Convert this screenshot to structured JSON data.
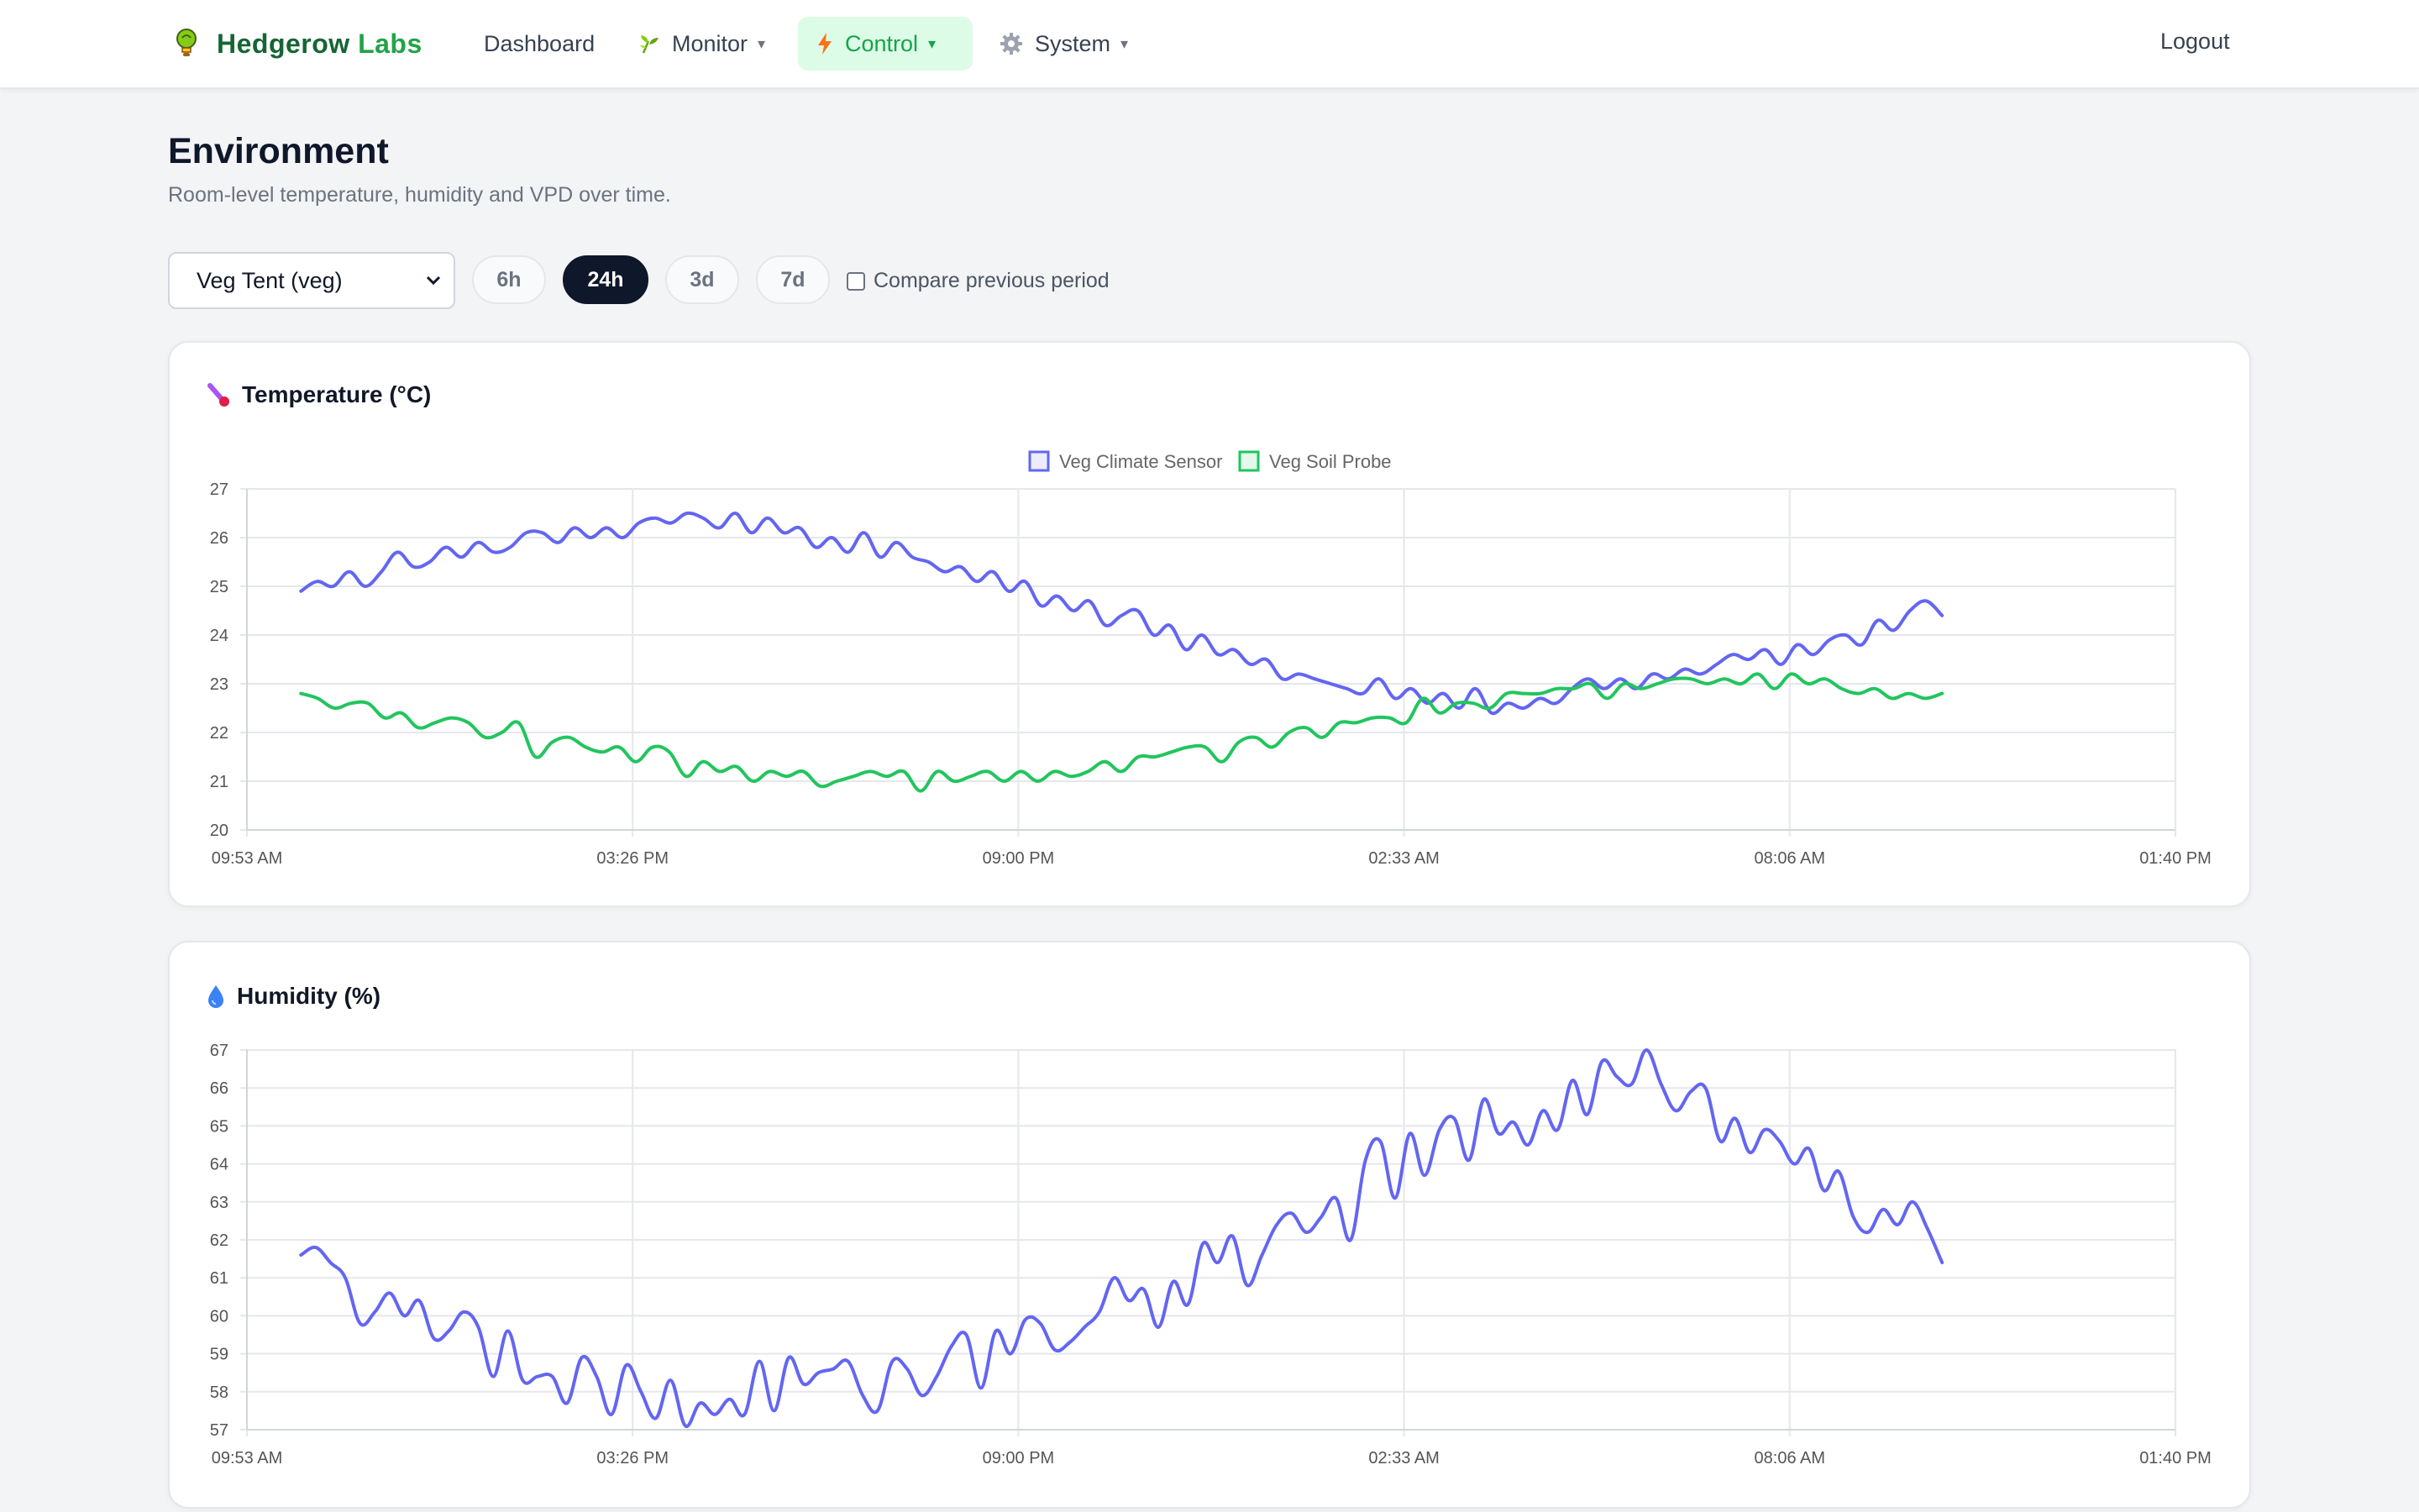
{
  "nav": {
    "brand_primary": "Hedgerow",
    "brand_accent": "Labs",
    "items": [
      {
        "label": "Dashboard",
        "icon": "",
        "has_caret": false
      },
      {
        "label": "Monitor",
        "icon": "sprout-icon",
        "has_caret": true
      },
      {
        "label": "Control",
        "icon": "lightning-icon",
        "has_caret": true,
        "active": true
      },
      {
        "label": "System",
        "icon": "gear-icon",
        "has_caret": true
      }
    ],
    "logout": "Logout"
  },
  "header": {
    "title": "Environment",
    "subtitle": "Room-level temperature, humidity and VPD over time."
  },
  "controls": {
    "room_selected": "Veg Tent (veg)",
    "ranges": [
      "6h",
      "24h",
      "3d",
      "7d"
    ],
    "active_range": "24h",
    "compare_label": "Compare previous period",
    "compare_checked": false
  },
  "colors": {
    "climate_sensor": "#6366f1",
    "soil_probe": "#22c55e",
    "grid": "#e5e7eb",
    "active_nav_bg": "#dcfce7",
    "active_range_bg": "#0f172a"
  },
  "cards": {
    "temperature": {
      "title": "Temperature (°C)",
      "icon": "thermometer-icon"
    },
    "humidity": {
      "title": "Humidity (%)",
      "icon": "droplet-icon"
    }
  },
  "chart_data": [
    {
      "type": "line",
      "title": "Temperature (°C)",
      "legend_position": "top-center",
      "grid": true,
      "x_ticks": [
        "09:53 AM",
        "03:26 PM",
        "09:00 PM",
        "02:33 AM",
        "08:06 AM",
        "01:40 PM"
      ],
      "ylim": [
        20,
        27
      ],
      "y_ticks": [
        20,
        21,
        22,
        23,
        24,
        25,
        26,
        27
      ],
      "series": [
        {
          "name": "Veg Climate Sensor",
          "color": "#6366f1",
          "values": [
            24.9,
            25.1,
            25.0,
            25.3,
            25.0,
            25.3,
            25.7,
            25.4,
            25.5,
            25.8,
            25.6,
            25.9,
            25.7,
            25.8,
            26.1,
            26.1,
            25.9,
            26.2,
            26.0,
            26.2,
            26.0,
            26.3,
            26.4,
            26.3,
            26.5,
            26.4,
            26.2,
            26.5,
            26.1,
            26.4,
            26.1,
            26.2,
            25.8,
            26.0,
            25.7,
            26.1,
            25.6,
            25.9,
            25.6,
            25.5,
            25.3,
            25.4,
            25.1,
            25.3,
            24.9,
            25.1,
            24.6,
            24.8,
            24.5,
            24.7,
            24.2,
            24.4,
            24.5,
            24.0,
            24.2,
            23.7,
            24.0,
            23.6,
            23.7,
            23.4,
            23.5,
            23.1,
            23.2,
            23.1,
            23.0,
            22.9,
            22.8,
            23.1,
            22.7,
            22.9,
            22.6,
            22.8,
            22.5,
            22.9,
            22.4,
            22.6,
            22.5,
            22.7,
            22.6,
            22.9,
            23.1,
            22.9,
            23.1,
            22.9,
            23.2,
            23.1,
            23.3,
            23.2,
            23.4,
            23.6,
            23.5,
            23.7,
            23.4,
            23.8,
            23.6,
            23.9,
            24.0,
            23.8,
            24.3,
            24.1,
            24.5,
            24.7,
            24.4
          ]
        },
        {
          "name": "Veg Soil Probe",
          "color": "#22c55e",
          "values": [
            22.8,
            22.7,
            22.5,
            22.6,
            22.6,
            22.3,
            22.4,
            22.1,
            22.2,
            22.3,
            22.2,
            21.9,
            22.0,
            22.2,
            21.5,
            21.8,
            21.9,
            21.7,
            21.6,
            21.7,
            21.4,
            21.7,
            21.6,
            21.1,
            21.4,
            21.2,
            21.3,
            21.0,
            21.2,
            21.1,
            21.2,
            20.9,
            21.0,
            21.1,
            21.2,
            21.1,
            21.2,
            20.8,
            21.2,
            21.0,
            21.1,
            21.2,
            21.0,
            21.2,
            21.0,
            21.2,
            21.1,
            21.2,
            21.4,
            21.2,
            21.5,
            21.5,
            21.6,
            21.7,
            21.7,
            21.4,
            21.8,
            21.9,
            21.7,
            22.0,
            22.1,
            21.9,
            22.2,
            22.2,
            22.3,
            22.3,
            22.2,
            22.7,
            22.4,
            22.6,
            22.6,
            22.5,
            22.8,
            22.8,
            22.8,
            22.9,
            22.9,
            23.0,
            22.7,
            23.0,
            22.9,
            23.0,
            23.1,
            23.1,
            23.0,
            23.1,
            23.0,
            23.2,
            22.9,
            23.2,
            23.0,
            23.1,
            22.9,
            22.8,
            22.9,
            22.7,
            22.8,
            22.7,
            22.8
          ]
        }
      ]
    },
    {
      "type": "line",
      "title": "Humidity (%)",
      "grid": true,
      "x_ticks": [
        "09:53 AM",
        "03:26 PM",
        "09:00 PM",
        "02:33 AM",
        "08:06 AM",
        "01:40 PM"
      ],
      "ylim": [
        57,
        67
      ],
      "y_ticks": [
        57,
        58,
        59,
        60,
        61,
        62,
        63,
        64,
        65,
        66,
        67
      ],
      "series": [
        {
          "color": "#6366f1",
          "values": [
            61.6,
            61.8,
            61.4,
            61.0,
            59.8,
            60.1,
            60.6,
            60.0,
            60.4,
            59.4,
            59.6,
            60.1,
            59.7,
            58.4,
            59.6,
            58.3,
            58.4,
            58.4,
            57.7,
            58.9,
            58.4,
            57.4,
            58.7,
            58.0,
            57.3,
            58.3,
            57.1,
            57.7,
            57.4,
            57.8,
            57.4,
            58.8,
            57.5,
            58.9,
            58.2,
            58.5,
            58.6,
            58.8,
            57.9,
            57.5,
            58.8,
            58.6,
            57.9,
            58.4,
            59.2,
            59.5,
            58.1,
            59.6,
            59.0,
            59.9,
            59.8,
            59.1,
            59.3,
            59.7,
            60.1,
            61.0,
            60.4,
            60.7,
            59.7,
            60.9,
            60.3,
            61.9,
            61.4,
            62.1,
            60.8,
            61.6,
            62.4,
            62.7,
            62.2,
            62.6,
            63.1,
            62.0,
            64.1,
            64.6,
            63.1,
            64.8,
            63.7,
            64.9,
            65.2,
            64.1,
            65.7,
            64.8,
            65.1,
            64.5,
            65.4,
            64.9,
            66.2,
            65.3,
            66.7,
            66.3,
            66.1,
            67.0,
            66.1,
            65.4,
            65.9,
            66.0,
            64.6,
            65.2,
            64.3,
            64.9,
            64.6,
            64.0,
            64.4,
            63.3,
            63.8,
            62.6,
            62.2,
            62.8,
            62.4,
            63.0,
            62.3,
            61.4
          ]
        }
      ]
    }
  ]
}
